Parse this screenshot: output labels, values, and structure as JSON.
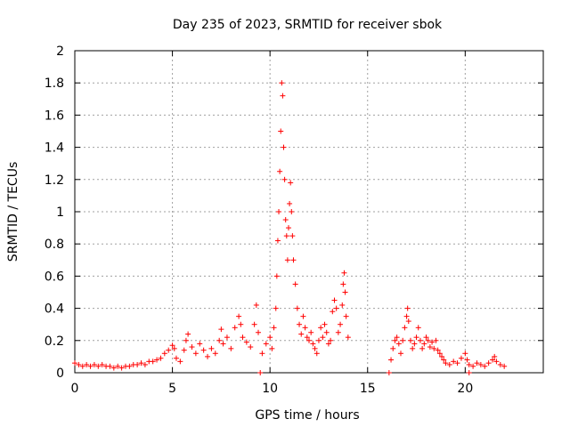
{
  "chart_data": {
    "type": "scatter",
    "title": "Day 235 of 2023, SRMTID for receiver sbok",
    "xlabel": "GPS time / hours",
    "ylabel": "SRMTID / TECUs",
    "xlim": [
      0,
      24
    ],
    "ylim": [
      0,
      2
    ],
    "xticks": [
      0,
      5,
      10,
      15,
      20
    ],
    "xtick_labels": [
      "0",
      "5",
      "10",
      "15",
      "20"
    ],
    "yticks": [
      0,
      0.2,
      0.4,
      0.6,
      0.8,
      1,
      1.2,
      1.4,
      1.6,
      1.8,
      2
    ],
    "ytick_labels": [
      "0",
      "0.2",
      "0.4",
      "0.6",
      "0.8",
      "1",
      "1.2",
      "1.4",
      "1.6",
      "1.8",
      "2"
    ],
    "grid": true,
    "marker": "+",
    "color": "#ff0000",
    "series": [
      {
        "name": "SRMTID",
        "points": [
          [
            0.0,
            0.06
          ],
          [
            0.2,
            0.05
          ],
          [
            0.4,
            0.04
          ],
          [
            0.6,
            0.05
          ],
          [
            0.8,
            0.04
          ],
          [
            1.0,
            0.05
          ],
          [
            1.2,
            0.04
          ],
          [
            1.4,
            0.05
          ],
          [
            1.6,
            0.04
          ],
          [
            1.8,
            0.04
          ],
          [
            2.0,
            0.03
          ],
          [
            2.2,
            0.04
          ],
          [
            2.4,
            0.03
          ],
          [
            2.6,
            0.04
          ],
          [
            2.8,
            0.04
          ],
          [
            3.0,
            0.05
          ],
          [
            3.2,
            0.05
          ],
          [
            3.4,
            0.06
          ],
          [
            3.6,
            0.05
          ],
          [
            3.8,
            0.07
          ],
          [
            4.0,
            0.07
          ],
          [
            4.2,
            0.08
          ],
          [
            4.4,
            0.09
          ],
          [
            4.6,
            0.12
          ],
          [
            4.8,
            0.14
          ],
          [
            5.0,
            0.17
          ],
          [
            5.1,
            0.15
          ],
          [
            5.2,
            0.09
          ],
          [
            5.4,
            0.07
          ],
          [
            5.6,
            0.14
          ],
          [
            5.7,
            0.2
          ],
          [
            5.8,
            0.24
          ],
          [
            6.0,
            0.16
          ],
          [
            6.2,
            0.12
          ],
          [
            6.4,
            0.18
          ],
          [
            6.6,
            0.14
          ],
          [
            6.8,
            0.1
          ],
          [
            7.0,
            0.15
          ],
          [
            7.2,
            0.12
          ],
          [
            7.4,
            0.2
          ],
          [
            7.5,
            0.27
          ],
          [
            7.6,
            0.18
          ],
          [
            7.8,
            0.22
          ],
          [
            8.0,
            0.15
          ],
          [
            8.2,
            0.28
          ],
          [
            8.4,
            0.35
          ],
          [
            8.5,
            0.3
          ],
          [
            8.6,
            0.22
          ],
          [
            8.8,
            0.19
          ],
          [
            9.0,
            0.16
          ],
          [
            9.2,
            0.3
          ],
          [
            9.3,
            0.42
          ],
          [
            9.4,
            0.25
          ],
          [
            9.6,
            0.12
          ],
          [
            9.8,
            0.18
          ],
          [
            10.0,
            0.22
          ],
          [
            10.1,
            0.15
          ],
          [
            10.2,
            0.28
          ],
          [
            10.3,
            0.4
          ],
          [
            10.35,
            0.6
          ],
          [
            10.4,
            0.82
          ],
          [
            10.45,
            1.0
          ],
          [
            10.5,
            1.25
          ],
          [
            10.55,
            1.5
          ],
          [
            10.6,
            1.8
          ],
          [
            10.65,
            1.72
          ],
          [
            10.7,
            1.4
          ],
          [
            10.75,
            1.2
          ],
          [
            10.8,
            0.95
          ],
          [
            10.85,
            0.85
          ],
          [
            10.9,
            0.7
          ],
          [
            10.95,
            0.9
          ],
          [
            11.0,
            1.05
          ],
          [
            11.05,
            1.18
          ],
          [
            11.1,
            1.0
          ],
          [
            11.15,
            0.85
          ],
          [
            11.2,
            0.7
          ],
          [
            11.3,
            0.55
          ],
          [
            11.4,
            0.4
          ],
          [
            11.5,
            0.3
          ],
          [
            11.6,
            0.24
          ],
          [
            11.7,
            0.35
          ],
          [
            11.8,
            0.28
          ],
          [
            11.9,
            0.22
          ],
          [
            12.0,
            0.2
          ],
          [
            12.1,
            0.25
          ],
          [
            12.2,
            0.18
          ],
          [
            12.3,
            0.15
          ],
          [
            12.4,
            0.12
          ],
          [
            12.5,
            0.2
          ],
          [
            12.6,
            0.28
          ],
          [
            12.7,
            0.22
          ],
          [
            12.8,
            0.3
          ],
          [
            12.9,
            0.25
          ],
          [
            13.0,
            0.18
          ],
          [
            13.1,
            0.2
          ],
          [
            13.2,
            0.38
          ],
          [
            13.3,
            0.45
          ],
          [
            13.4,
            0.4
          ],
          [
            13.5,
            0.25
          ],
          [
            13.6,
            0.3
          ],
          [
            13.7,
            0.42
          ],
          [
            13.75,
            0.55
          ],
          [
            13.8,
            0.62
          ],
          [
            13.85,
            0.5
          ],
          [
            13.9,
            0.35
          ],
          [
            14.0,
            0.22
          ],
          [
            16.2,
            0.08
          ],
          [
            16.3,
            0.15
          ],
          [
            16.4,
            0.2
          ],
          [
            16.5,
            0.22
          ],
          [
            16.6,
            0.18
          ],
          [
            16.7,
            0.12
          ],
          [
            16.8,
            0.2
          ],
          [
            16.9,
            0.28
          ],
          [
            17.0,
            0.35
          ],
          [
            17.05,
            0.4
          ],
          [
            17.1,
            0.32
          ],
          [
            17.2,
            0.2
          ],
          [
            17.3,
            0.15
          ],
          [
            17.4,
            0.18
          ],
          [
            17.5,
            0.22
          ],
          [
            17.6,
            0.28
          ],
          [
            17.7,
            0.2
          ],
          [
            17.8,
            0.15
          ],
          [
            17.9,
            0.18
          ],
          [
            18.0,
            0.22
          ],
          [
            18.1,
            0.2
          ],
          [
            18.2,
            0.16
          ],
          [
            18.3,
            0.19
          ],
          [
            18.4,
            0.15
          ],
          [
            18.5,
            0.2
          ],
          [
            18.6,
            0.14
          ],
          [
            18.7,
            0.12
          ],
          [
            18.8,
            0.1
          ],
          [
            18.9,
            0.08
          ],
          [
            19.0,
            0.06
          ],
          [
            19.2,
            0.05
          ],
          [
            19.4,
            0.07
          ],
          [
            19.6,
            0.06
          ],
          [
            19.8,
            0.09
          ],
          [
            20.0,
            0.12
          ],
          [
            20.1,
            0.08
          ],
          [
            20.2,
            0.05
          ],
          [
            20.4,
            0.04
          ],
          [
            20.6,
            0.06
          ],
          [
            20.8,
            0.05
          ],
          [
            21.0,
            0.04
          ],
          [
            21.2,
            0.06
          ],
          [
            21.4,
            0.08
          ],
          [
            21.5,
            0.1
          ],
          [
            21.6,
            0.07
          ],
          [
            21.8,
            0.05
          ],
          [
            22.0,
            0.04
          ],
          [
            9.5,
            0.0
          ],
          [
            16.1,
            0.0
          ],
          [
            20.2,
            0.0
          ]
        ]
      }
    ]
  }
}
